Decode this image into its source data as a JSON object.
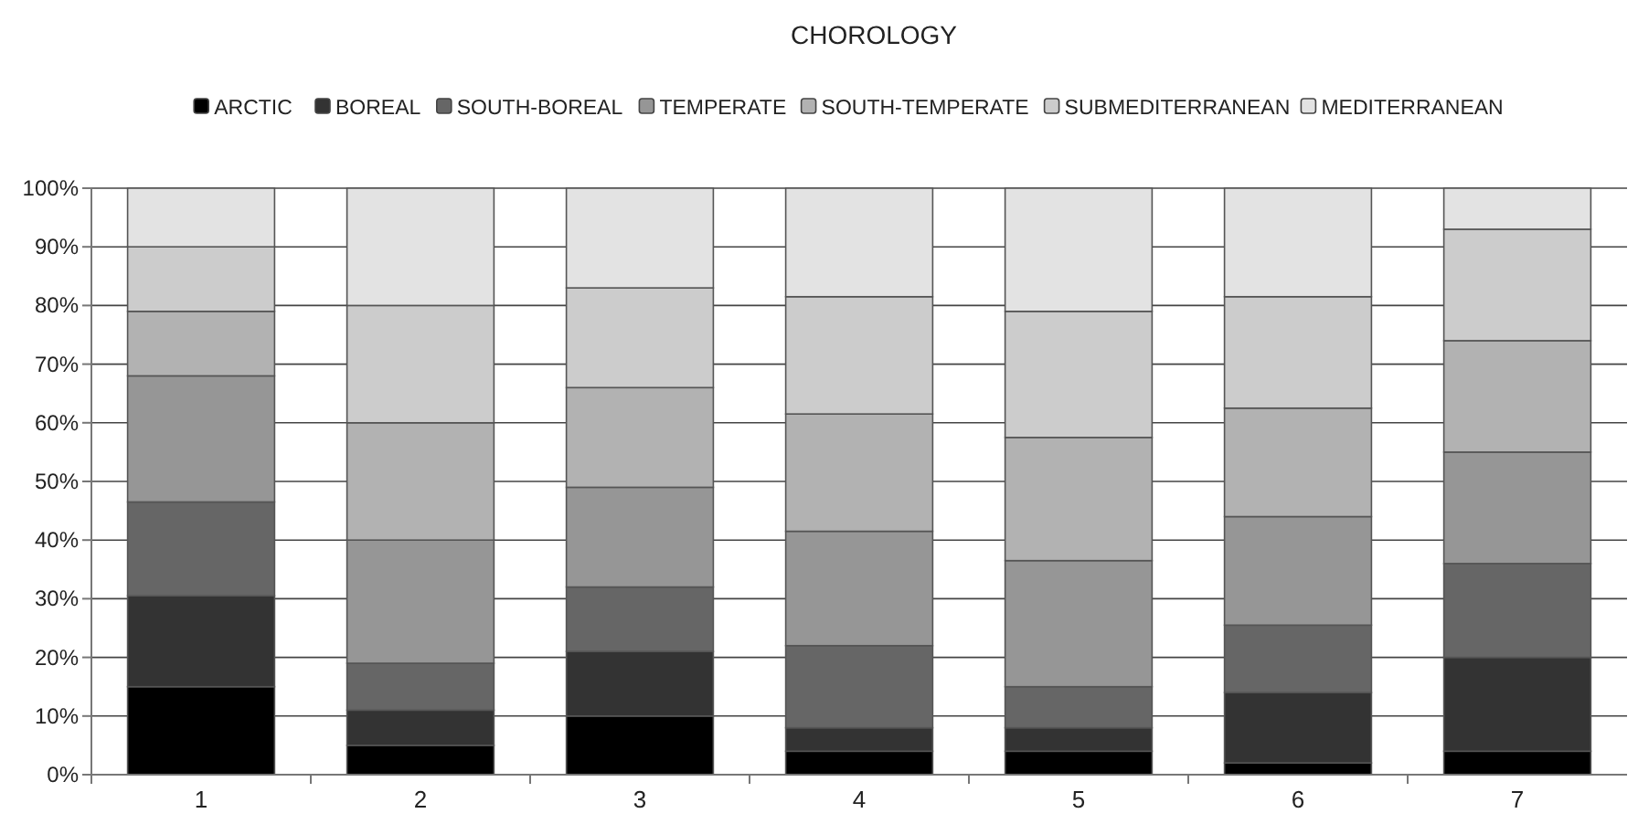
{
  "chart_data": {
    "type": "bar",
    "title": "CHOROLOGY",
    "stacked": true,
    "categories": [
      "1",
      "2",
      "3",
      "4",
      "5",
      "6",
      "7"
    ],
    "series": [
      {
        "name": "ARCTIC",
        "color": "#000000",
        "values": [
          15,
          5,
          10,
          4,
          4,
          2,
          4
        ]
      },
      {
        "name": "BOREAL",
        "color": "#333333",
        "values": [
          15.5,
          6,
          11,
          4,
          4,
          12,
          16
        ]
      },
      {
        "name": "SOUTH-BOREAL",
        "color": "#666666",
        "values": [
          16,
          8,
          11,
          14,
          7,
          11.5,
          16
        ]
      },
      {
        "name": "TEMPERATE",
        "color": "#969696",
        "values": [
          21.5,
          21,
          17,
          19.5,
          21.5,
          18.5,
          19
        ]
      },
      {
        "name": "SOUTH-TEMPERATE",
        "color": "#b2b2b2",
        "values": [
          11,
          20,
          17,
          20,
          21,
          18.5,
          19
        ]
      },
      {
        "name": "SUBMEDITERRANEAN",
        "color": "#cccccc",
        "values": [
          11,
          20,
          17,
          20,
          21.5,
          19,
          19
        ]
      },
      {
        "name": "MEDITERRANEAN",
        "color": "#e3e3e3",
        "values": [
          10,
          20,
          17,
          18.5,
          21,
          18.5,
          7
        ]
      }
    ],
    "ylim": [
      0,
      100
    ],
    "yticks": [
      {
        "value": 0,
        "label": "0%"
      },
      {
        "value": 10,
        "label": "10%"
      },
      {
        "value": 20,
        "label": "20%"
      },
      {
        "value": 30,
        "label": "30%"
      },
      {
        "value": 40,
        "label": "40%"
      },
      {
        "value": 50,
        "label": "50%"
      },
      {
        "value": 60,
        "label": "60%"
      },
      {
        "value": 70,
        "label": "70%"
      },
      {
        "value": 80,
        "label": "80%"
      },
      {
        "value": 90,
        "label": "90%"
      },
      {
        "value": 100,
        "label": "100%"
      }
    ],
    "grid": "y",
    "legend": "top"
  }
}
